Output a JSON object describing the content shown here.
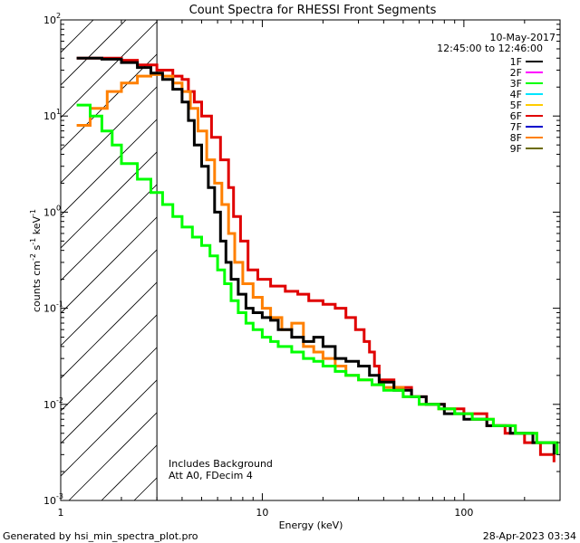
{
  "chart_data": {
    "type": "line",
    "title": "Count Spectra for RHESSI Front Segments",
    "xlabel": "Energy (keV)",
    "ylabel_main": "counts cm",
    "ylabel_exp1": "-2",
    "ylabel_mid": " s",
    "ylabel_exp2": "-1",
    "ylabel_end": " keV",
    "ylabel_exp3": "-1",
    "xscale": "log",
    "yscale": "log",
    "xlim": [
      1,
      300
    ],
    "ylim": [
      0.001,
      100
    ],
    "x_ticks": [
      {
        "value": 1,
        "label": "1"
      },
      {
        "value": 10,
        "label": "10"
      },
      {
        "value": 100,
        "label": "100"
      }
    ],
    "y_ticks": [
      {
        "value": 100,
        "base": "10",
        "exp": "2"
      },
      {
        "value": 10,
        "base": "10",
        "exp": "1"
      },
      {
        "value": 1,
        "base": "10",
        "exp": "0"
      },
      {
        "value": 0.1,
        "base": "10",
        "exp": "-1"
      },
      {
        "value": 0.01,
        "base": "10",
        "exp": "-2"
      },
      {
        "value": 0.001,
        "base": "10",
        "exp": "-3"
      }
    ],
    "date": "10-May-2017",
    "time_range": "12:45:00 to 12:46:00",
    "hatched_region_xmax": 3,
    "annotation_line1": "Includes Background",
    "annotation_line2": "Att A0, FDecim 4",
    "legend": [
      {
        "name": "1F",
        "color": "#000000"
      },
      {
        "name": "2F",
        "color": "#ff00ff"
      },
      {
        "name": "3F",
        "color": "#00ff00"
      },
      {
        "name": "4F",
        "color": "#00e5ff"
      },
      {
        "name": "5F",
        "color": "#ffcc00"
      },
      {
        "name": "6F",
        "color": "#e00000"
      },
      {
        "name": "7F",
        "color": "#0000cc"
      },
      {
        "name": "8F",
        "color": "#ff8000"
      },
      {
        "name": "9F",
        "color": "#6b6b00"
      }
    ],
    "series": [
      {
        "name": "6F",
        "color": "#e00000",
        "width": 3,
        "points": [
          [
            1.2,
            40
          ],
          [
            1.6,
            40
          ],
          [
            2.0,
            38
          ],
          [
            2.4,
            34
          ],
          [
            3.0,
            30
          ],
          [
            3.6,
            26
          ],
          [
            4.0,
            24
          ],
          [
            4.3,
            18
          ],
          [
            4.6,
            14
          ],
          [
            5.0,
            10
          ],
          [
            5.6,
            6
          ],
          [
            6.2,
            3.5
          ],
          [
            6.8,
            1.8
          ],
          [
            7.2,
            0.9
          ],
          [
            7.8,
            0.5
          ],
          [
            8.5,
            0.25
          ],
          [
            9.5,
            0.2
          ],
          [
            11,
            0.17
          ],
          [
            13,
            0.15
          ],
          [
            15,
            0.14
          ],
          [
            17,
            0.12
          ],
          [
            20,
            0.11
          ],
          [
            23,
            0.1
          ],
          [
            26,
            0.08
          ],
          [
            29,
            0.06
          ],
          [
            32,
            0.045
          ],
          [
            34,
            0.035
          ],
          [
            36,
            0.025
          ],
          [
            38,
            0.018
          ],
          [
            45,
            0.015
          ],
          [
            55,
            0.012
          ],
          [
            65,
            0.01
          ],
          [
            80,
            0.009
          ],
          [
            100,
            0.008
          ],
          [
            130,
            0.006
          ],
          [
            160,
            0.005
          ],
          [
            200,
            0.004
          ],
          [
            240,
            0.003
          ],
          [
            280,
            0.0025
          ]
        ]
      },
      {
        "name": "8F",
        "color": "#ff8000",
        "width": 3,
        "points": [
          [
            1.2,
            8
          ],
          [
            1.4,
            12
          ],
          [
            1.7,
            18
          ],
          [
            2.0,
            22
          ],
          [
            2.4,
            26
          ],
          [
            2.8,
            27
          ],
          [
            3.2,
            26
          ],
          [
            3.6,
            22
          ],
          [
            4.0,
            18
          ],
          [
            4.4,
            12
          ],
          [
            4.8,
            7
          ],
          [
            5.3,
            3.5
          ],
          [
            5.8,
            2
          ],
          [
            6.3,
            1.2
          ],
          [
            6.8,
            0.6
          ],
          [
            7.3,
            0.3
          ],
          [
            8,
            0.18
          ],
          [
            9,
            0.13
          ],
          [
            10,
            0.1
          ],
          [
            11,
            0.08
          ],
          [
            12.5,
            0.06
          ],
          [
            14,
            0.07
          ],
          [
            16,
            0.04
          ],
          [
            18,
            0.035
          ],
          [
            20,
            0.03
          ],
          [
            23,
            0.025
          ],
          [
            26,
            0.02
          ],
          [
            30,
            0.018
          ],
          [
            35,
            0.016
          ],
          [
            40,
            0.015
          ],
          [
            50,
            0.012
          ],
          [
            60,
            0.01
          ],
          [
            75,
            0.009
          ],
          [
            90,
            0.008
          ],
          [
            110,
            0.007
          ],
          [
            140,
            0.006
          ],
          [
            180,
            0.005
          ],
          [
            230,
            0.004
          ],
          [
            290,
            0.003
          ]
        ]
      },
      {
        "name": "1F",
        "color": "#000000",
        "width": 3,
        "points": [
          [
            1.2,
            40
          ],
          [
            1.6,
            39
          ],
          [
            2.0,
            36
          ],
          [
            2.4,
            32
          ],
          [
            2.8,
            28
          ],
          [
            3.2,
            24
          ],
          [
            3.6,
            19
          ],
          [
            4.0,
            14
          ],
          [
            4.3,
            9
          ],
          [
            4.6,
            5
          ],
          [
            5.0,
            3
          ],
          [
            5.4,
            1.8
          ],
          [
            5.8,
            1.0
          ],
          [
            6.2,
            0.5
          ],
          [
            6.6,
            0.3
          ],
          [
            7.0,
            0.2
          ],
          [
            7.6,
            0.14
          ],
          [
            8.3,
            0.1
          ],
          [
            9,
            0.09
          ],
          [
            10,
            0.08
          ],
          [
            11,
            0.075
          ],
          [
            12,
            0.06
          ],
          [
            14,
            0.05
          ],
          [
            16,
            0.045
          ],
          [
            18,
            0.05
          ],
          [
            20,
            0.04
          ],
          [
            23,
            0.03
          ],
          [
            26,
            0.028
          ],
          [
            30,
            0.025
          ],
          [
            34,
            0.02
          ],
          [
            38,
            0.017
          ],
          [
            45,
            0.014
          ],
          [
            55,
            0.012
          ],
          [
            65,
            0.01
          ],
          [
            80,
            0.008
          ],
          [
            100,
            0.007
          ],
          [
            130,
            0.006
          ],
          [
            170,
            0.005
          ],
          [
            220,
            0.004
          ],
          [
            280,
            0.003
          ]
        ]
      },
      {
        "name": "3F",
        "color": "#00ff00",
        "width": 3,
        "points": [
          [
            1.2,
            13
          ],
          [
            1.4,
            10
          ],
          [
            1.6,
            7
          ],
          [
            1.8,
            5
          ],
          [
            2.0,
            3.2
          ],
          [
            2.4,
            2.2
          ],
          [
            2.8,
            1.6
          ],
          [
            3.2,
            1.2
          ],
          [
            3.6,
            0.9
          ],
          [
            4.0,
            0.7
          ],
          [
            4.5,
            0.55
          ],
          [
            5.0,
            0.45
          ],
          [
            5.5,
            0.35
          ],
          [
            6,
            0.25
          ],
          [
            6.5,
            0.18
          ],
          [
            7,
            0.12
          ],
          [
            7.6,
            0.09
          ],
          [
            8.3,
            0.07
          ],
          [
            9,
            0.06
          ],
          [
            10,
            0.05
          ],
          [
            11,
            0.045
          ],
          [
            12,
            0.04
          ],
          [
            14,
            0.035
          ],
          [
            16,
            0.03
          ],
          [
            18,
            0.028
          ],
          [
            20,
            0.025
          ],
          [
            23,
            0.022
          ],
          [
            26,
            0.02
          ],
          [
            30,
            0.018
          ],
          [
            35,
            0.016
          ],
          [
            40,
            0.014
          ],
          [
            50,
            0.012
          ],
          [
            60,
            0.01
          ],
          [
            75,
            0.009
          ],
          [
            90,
            0.008
          ],
          [
            110,
            0.007
          ],
          [
            140,
            0.006
          ],
          [
            180,
            0.005
          ],
          [
            230,
            0.004
          ],
          [
            290,
            0.003
          ]
        ]
      }
    ]
  },
  "footer": {
    "left": "Generated by hsi_min_spectra_plot.pro",
    "right": "28-Apr-2023 03:34"
  }
}
